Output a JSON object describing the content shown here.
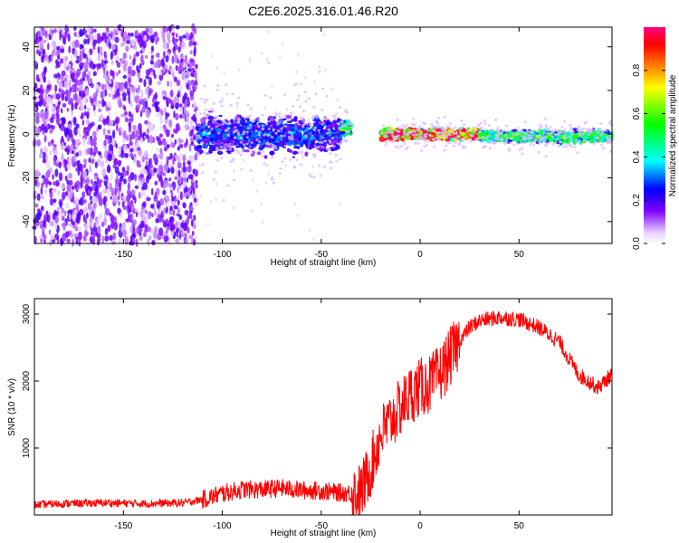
{
  "title": "C2E6.2025.316.01.46.R20",
  "chart_data": [
    {
      "type": "heatmap",
      "xlabel": "Height of straight line (km)",
      "ylabel": "Frequency (Hz)",
      "xlim": [
        -195,
        97
      ],
      "ylim": [
        -50,
        49
      ],
      "xticks": [
        -150,
        -100,
        -50,
        0,
        50
      ],
      "yticks": [
        -40,
        -20,
        0,
        20,
        40
      ],
      "colorbar": {
        "label": "Normalized spectral amplitude",
        "range": [
          0,
          1
        ],
        "ticks": [
          0.0,
          0.2,
          0.4,
          0.6,
          0.8
        ],
        "colormap": [
          "#ffffff",
          "#7f00ff",
          "#0000ff",
          "#00ffff",
          "#00ff00",
          "#ffff00",
          "#ff8000",
          "#ff0000",
          "#ff0080"
        ]
      },
      "regions": [
        {
          "x": [
            -195,
            -113
          ],
          "description": "scattered noise across all frequencies",
          "amplitude": 0.1
        },
        {
          "x": [
            -113,
            -40
          ],
          "center_hz": 0,
          "spread_hz": 10,
          "amplitude": 0.3
        },
        {
          "x": [
            -40,
            -35
          ],
          "center_hz": 3,
          "spread_hz": 4,
          "amplitude": 0.55
        },
        {
          "x": [
            -20,
            30
          ],
          "center_hz": 0,
          "spread_hz": 3,
          "amplitude": 0.9
        },
        {
          "x": [
            30,
            97
          ],
          "center_hz": -1,
          "spread_hz": 3,
          "amplitude": 0.55
        }
      ]
    },
    {
      "type": "line",
      "xlabel": "Height of straight line (km)",
      "ylabel": "SNR (10 * v/v)",
      "xlim": [
        -195,
        97
      ],
      "ylim": [
        0,
        3230
      ],
      "xticks": [
        -150,
        -100,
        -50,
        0,
        50
      ],
      "yticks": [
        1000,
        2000,
        3000
      ],
      "series": [
        {
          "color": "#ff0000",
          "x": [
            -195,
            -180,
            -160,
            -140,
            -120,
            -110,
            -100,
            -90,
            -80,
            -70,
            -60,
            -50,
            -40,
            -30,
            -25,
            -20,
            -15,
            -10,
            -5,
            0,
            5,
            10,
            20,
            25,
            30,
            40,
            50,
            60,
            70,
            80,
            90,
            97
          ],
          "y": [
            150,
            170,
            180,
            170,
            180,
            230,
            320,
            380,
            380,
            400,
            370,
            360,
            330,
            330,
            700,
            1200,
            1400,
            1600,
            1800,
            1900,
            1950,
            2100,
            2600,
            2800,
            2900,
            2950,
            2920,
            2800,
            2600,
            2100,
            1900,
            2100
          ]
        }
      ]
    }
  ]
}
